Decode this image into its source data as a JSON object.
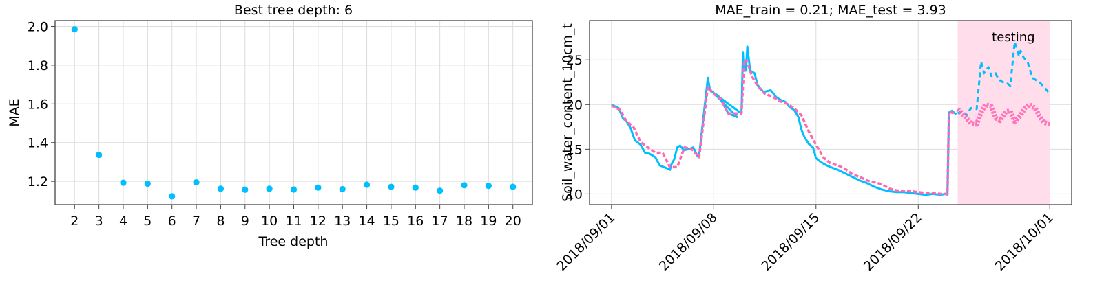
{
  "chart_data": [
    {
      "type": "scatter",
      "title": "Best tree depth: 6",
      "xlabel": "Tree depth",
      "ylabel": "MAE",
      "x": [
        2,
        3,
        4,
        5,
        6,
        7,
        8,
        9,
        10,
        11,
        12,
        13,
        14,
        15,
        16,
        17,
        18,
        19,
        20
      ],
      "y": [
        1.985,
        1.337,
        1.193,
        1.188,
        1.123,
        1.195,
        1.162,
        1.157,
        1.162,
        1.158,
        1.168,
        1.16,
        1.183,
        1.172,
        1.168,
        1.152,
        1.18,
        1.177,
        1.172
      ],
      "xticks": [
        "2",
        "3",
        "4",
        "5",
        "6",
        "7",
        "8",
        "9",
        "10",
        "11",
        "12",
        "13",
        "14",
        "15",
        "16",
        "17",
        "18",
        "19",
        "20"
      ],
      "yticks": [
        "1.2",
        "1.4",
        "1.6",
        "1.8",
        "2.0"
      ],
      "ytick_values": [
        1.2,
        1.4,
        1.6,
        1.8,
        2.0
      ],
      "xlim": [
        1.2,
        20.8
      ],
      "ylim": [
        1.08,
        2.03
      ],
      "grid": true,
      "colors": {
        "points": "#00BFFF"
      }
    },
    {
      "type": "line",
      "title": "MAE_train = 0.21; MAE_test = 3.93",
      "xlabel": "",
      "ylabel": "Soil_water_content_10cm_t",
      "xticks": [
        "2018/09/01",
        "2018/09/08",
        "2018/09/15",
        "2018/09/22",
        "2018/10/01"
      ],
      "xtick_values": [
        0,
        7,
        14,
        21,
        30
      ],
      "yticks": [
        "10",
        "15",
        "20",
        "25"
      ],
      "ytick_values": [
        10,
        15,
        20,
        25
      ],
      "xlim": [
        -1.5,
        31.5
      ],
      "ylim": [
        8.8,
        29.4
      ],
      "grid": true,
      "testing_region": {
        "start": 23.7,
        "end": 30,
        "label": "testing"
      },
      "series": [
        {
          "role": "observed",
          "color": "#00BFFF",
          "x": [
            0,
            0.5,
            0.8,
            1.0,
            1.3,
            1.6,
            2.0,
            2.3,
            2.6,
            3.0,
            3.3,
            3.6,
            3.9,
            4.0,
            4.1,
            4.3,
            4.5,
            4.7,
            4.9,
            5.0,
            5.3,
            5.6,
            5.9,
            6.0,
            6.6,
            6.75,
            6.8,
            7.0,
            7.3,
            7.6,
            8.0,
            8.3,
            8.6,
            7.0,
            8.9,
            9.0,
            9.05,
            9.2,
            9.3,
            9.5,
            9.8,
            10.0,
            10.4,
            10.9,
            11.3,
            11.6,
            11.9,
            12.2,
            12.5,
            12.8,
            13.0,
            13.2,
            13.5,
            13.8,
            14.0,
            14.3,
            14.6,
            15.0,
            15.5,
            16.0,
            16.5,
            17.0,
            17.5,
            18.0,
            18.5,
            19.0,
            19.5,
            20.0,
            20.5,
            21.0,
            21.5,
            22.0,
            22.5,
            22.9,
            23.0,
            23.1,
            23.3,
            23.6
          ],
          "y": [
            20.0,
            19.6,
            18.4,
            18.2,
            17.4,
            16.0,
            15.5,
            14.6,
            14.5,
            14.1,
            13.2,
            13.0,
            12.8,
            12.7,
            13.3,
            13.9,
            15.2,
            15.4,
            15.0,
            14.9,
            15.0,
            15.2,
            14.2,
            14.3,
            23.0,
            21.6,
            21.5,
            21.3,
            21.0,
            20.2,
            19.0,
            18.8,
            18.6,
            21.3,
            19.0,
            25.8,
            24.0,
            23.8,
            26.5,
            23.8,
            23.5,
            22.2,
            21.4,
            21.6,
            20.8,
            20.5,
            20.3,
            19.7,
            19.4,
            18.6,
            17.2,
            16.4,
            15.6,
            15.2,
            14.0,
            13.6,
            13.3,
            13.0,
            12.7,
            12.3,
            11.9,
            11.5,
            11.2,
            10.8,
            10.5,
            10.3,
            10.2,
            10.2,
            10.1,
            10.0,
            9.9,
            10.0,
            9.9,
            10.0,
            9.9,
            19.1,
            19.3,
            18.9
          ]
        },
        {
          "role": "training-prediction",
          "color": "#FF69B4",
          "x": [
            0,
            0.6,
            1.0,
            1.5,
            2.0,
            2.5,
            3.0,
            3.5,
            4.0,
            4.5,
            5.0,
            5.5,
            6.0,
            6.6,
            7.0,
            7.5,
            8.0,
            8.5,
            8.9,
            9.1,
            9.3,
            9.6,
            10.0,
            10.5,
            11.0,
            11.5,
            12.0,
            12.5,
            13.0,
            13.5,
            14.0,
            14.5,
            15.0,
            15.5,
            16.0,
            16.5,
            17.0,
            17.5,
            18.0,
            18.5,
            19.0,
            19.5,
            20.0,
            20.5,
            21.0,
            21.5,
            22.0,
            22.5,
            23.0,
            23.1,
            23.5
          ],
          "y": [
            19.9,
            19.4,
            18.2,
            17.5,
            15.8,
            15.2,
            14.6,
            14.6,
            13.0,
            13.0,
            15.2,
            15.0,
            14.1,
            22.0,
            21.2,
            20.6,
            19.0,
            19.0,
            19.0,
            25.0,
            24.8,
            23.2,
            22.1,
            21.2,
            20.9,
            20.4,
            20.1,
            19.6,
            18.8,
            17.0,
            15.5,
            14.1,
            13.4,
            13.2,
            12.8,
            12.2,
            11.9,
            11.5,
            11.3,
            11.1,
            10.6,
            10.4,
            10.3,
            10.3,
            10.2,
            10.1,
            10.1,
            10.0,
            10.0,
            19.2,
            19.0
          ]
        },
        {
          "role": "test-observed",
          "color": "#00BFFF",
          "dashed": true,
          "x": [
            23.7,
            24.0,
            24.3,
            24.6,
            25.0,
            25.3,
            25.5,
            25.8,
            26.0,
            26.3,
            26.5,
            26.8,
            27.0,
            27.3,
            27.6,
            27.9,
            28.0,
            28.2,
            28.5,
            28.8,
            29.0,
            29.3,
            29.6,
            30.0
          ],
          "y": [
            19.0,
            19.3,
            18.8,
            19.6,
            19.5,
            24.8,
            23.5,
            24.2,
            23.2,
            23.5,
            22.8,
            22.5,
            22.5,
            22.1,
            27.0,
            25.4,
            26.0,
            25.3,
            24.7,
            23.0,
            22.8,
            22.5,
            22.0,
            21.2
          ]
        },
        {
          "role": "test-prediction",
          "color": "#FF69B4",
          "x": [
            23.7,
            24.0,
            24.3,
            24.6,
            25.0,
            25.3,
            25.6,
            26.0,
            26.3,
            26.6,
            27.0,
            27.3,
            27.6,
            28.0,
            28.3,
            28.6,
            29.0,
            29.3,
            29.6,
            30.0
          ],
          "y": [
            19.5,
            19.0,
            18.5,
            17.9,
            17.8,
            19.1,
            20.0,
            19.8,
            18.5,
            18.2,
            19.2,
            19.3,
            18.1,
            18.8,
            19.6,
            20.0,
            19.6,
            18.7,
            18.0,
            17.8
          ]
        }
      ],
      "colors": {
        "testing_fill": "#FFDDEB",
        "testing_text": "#FF69B4"
      }
    }
  ]
}
